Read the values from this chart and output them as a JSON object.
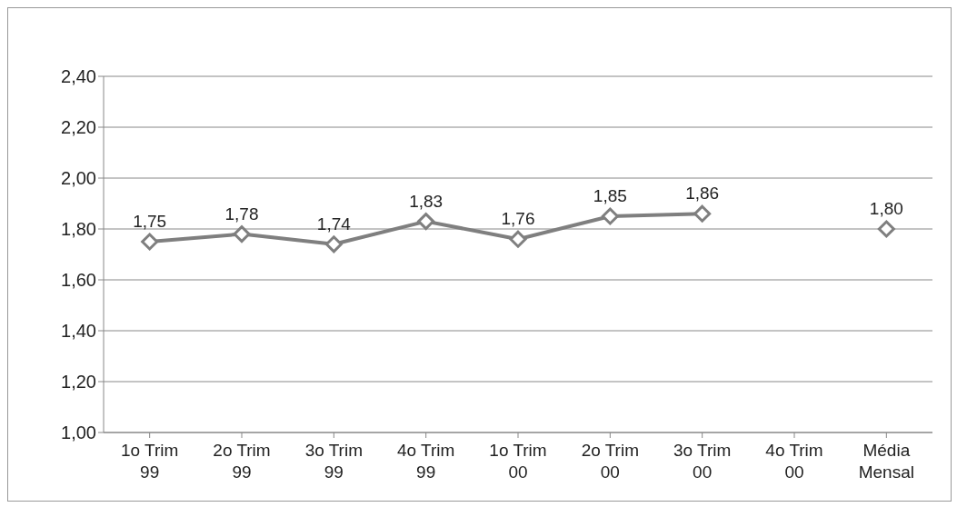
{
  "chart_data": {
    "type": "line",
    "categories": [
      "1o Trim 99",
      "2o Trim 99",
      "3o Trim 99",
      "4o Trim 99",
      "1o Trim 00",
      "2o Trim 00",
      "3o Trim 00",
      "4o Trim 00",
      "Média Mensal"
    ],
    "series": [
      {
        "color": "#7f7f7f",
        "values": [
          1.75,
          1.78,
          1.74,
          1.83,
          1.76,
          1.85,
          1.86,
          null,
          1.8
        ],
        "value_labels": [
          "1,75",
          "1,78",
          "1,74",
          "1,83",
          "1,76",
          "1,85",
          "1,86",
          null,
          "1,80"
        ]
      }
    ],
    "ylim": [
      1.0,
      2.4
    ],
    "yticks": [
      {
        "value": 1.0,
        "label": "1,00"
      },
      {
        "value": 1.2,
        "label": "1,20"
      },
      {
        "value": 1.4,
        "label": "1,40"
      },
      {
        "value": 1.6,
        "label": "1,60"
      },
      {
        "value": 1.8,
        "label": "1,80"
      },
      {
        "value": 2.0,
        "label": "2,00"
      },
      {
        "value": 2.2,
        "label": "2,20"
      },
      {
        "value": 2.4,
        "label": "2,40"
      }
    ],
    "grid": "y",
    "legend": false,
    "marker": "diamond",
    "line_style": "solid"
  }
}
